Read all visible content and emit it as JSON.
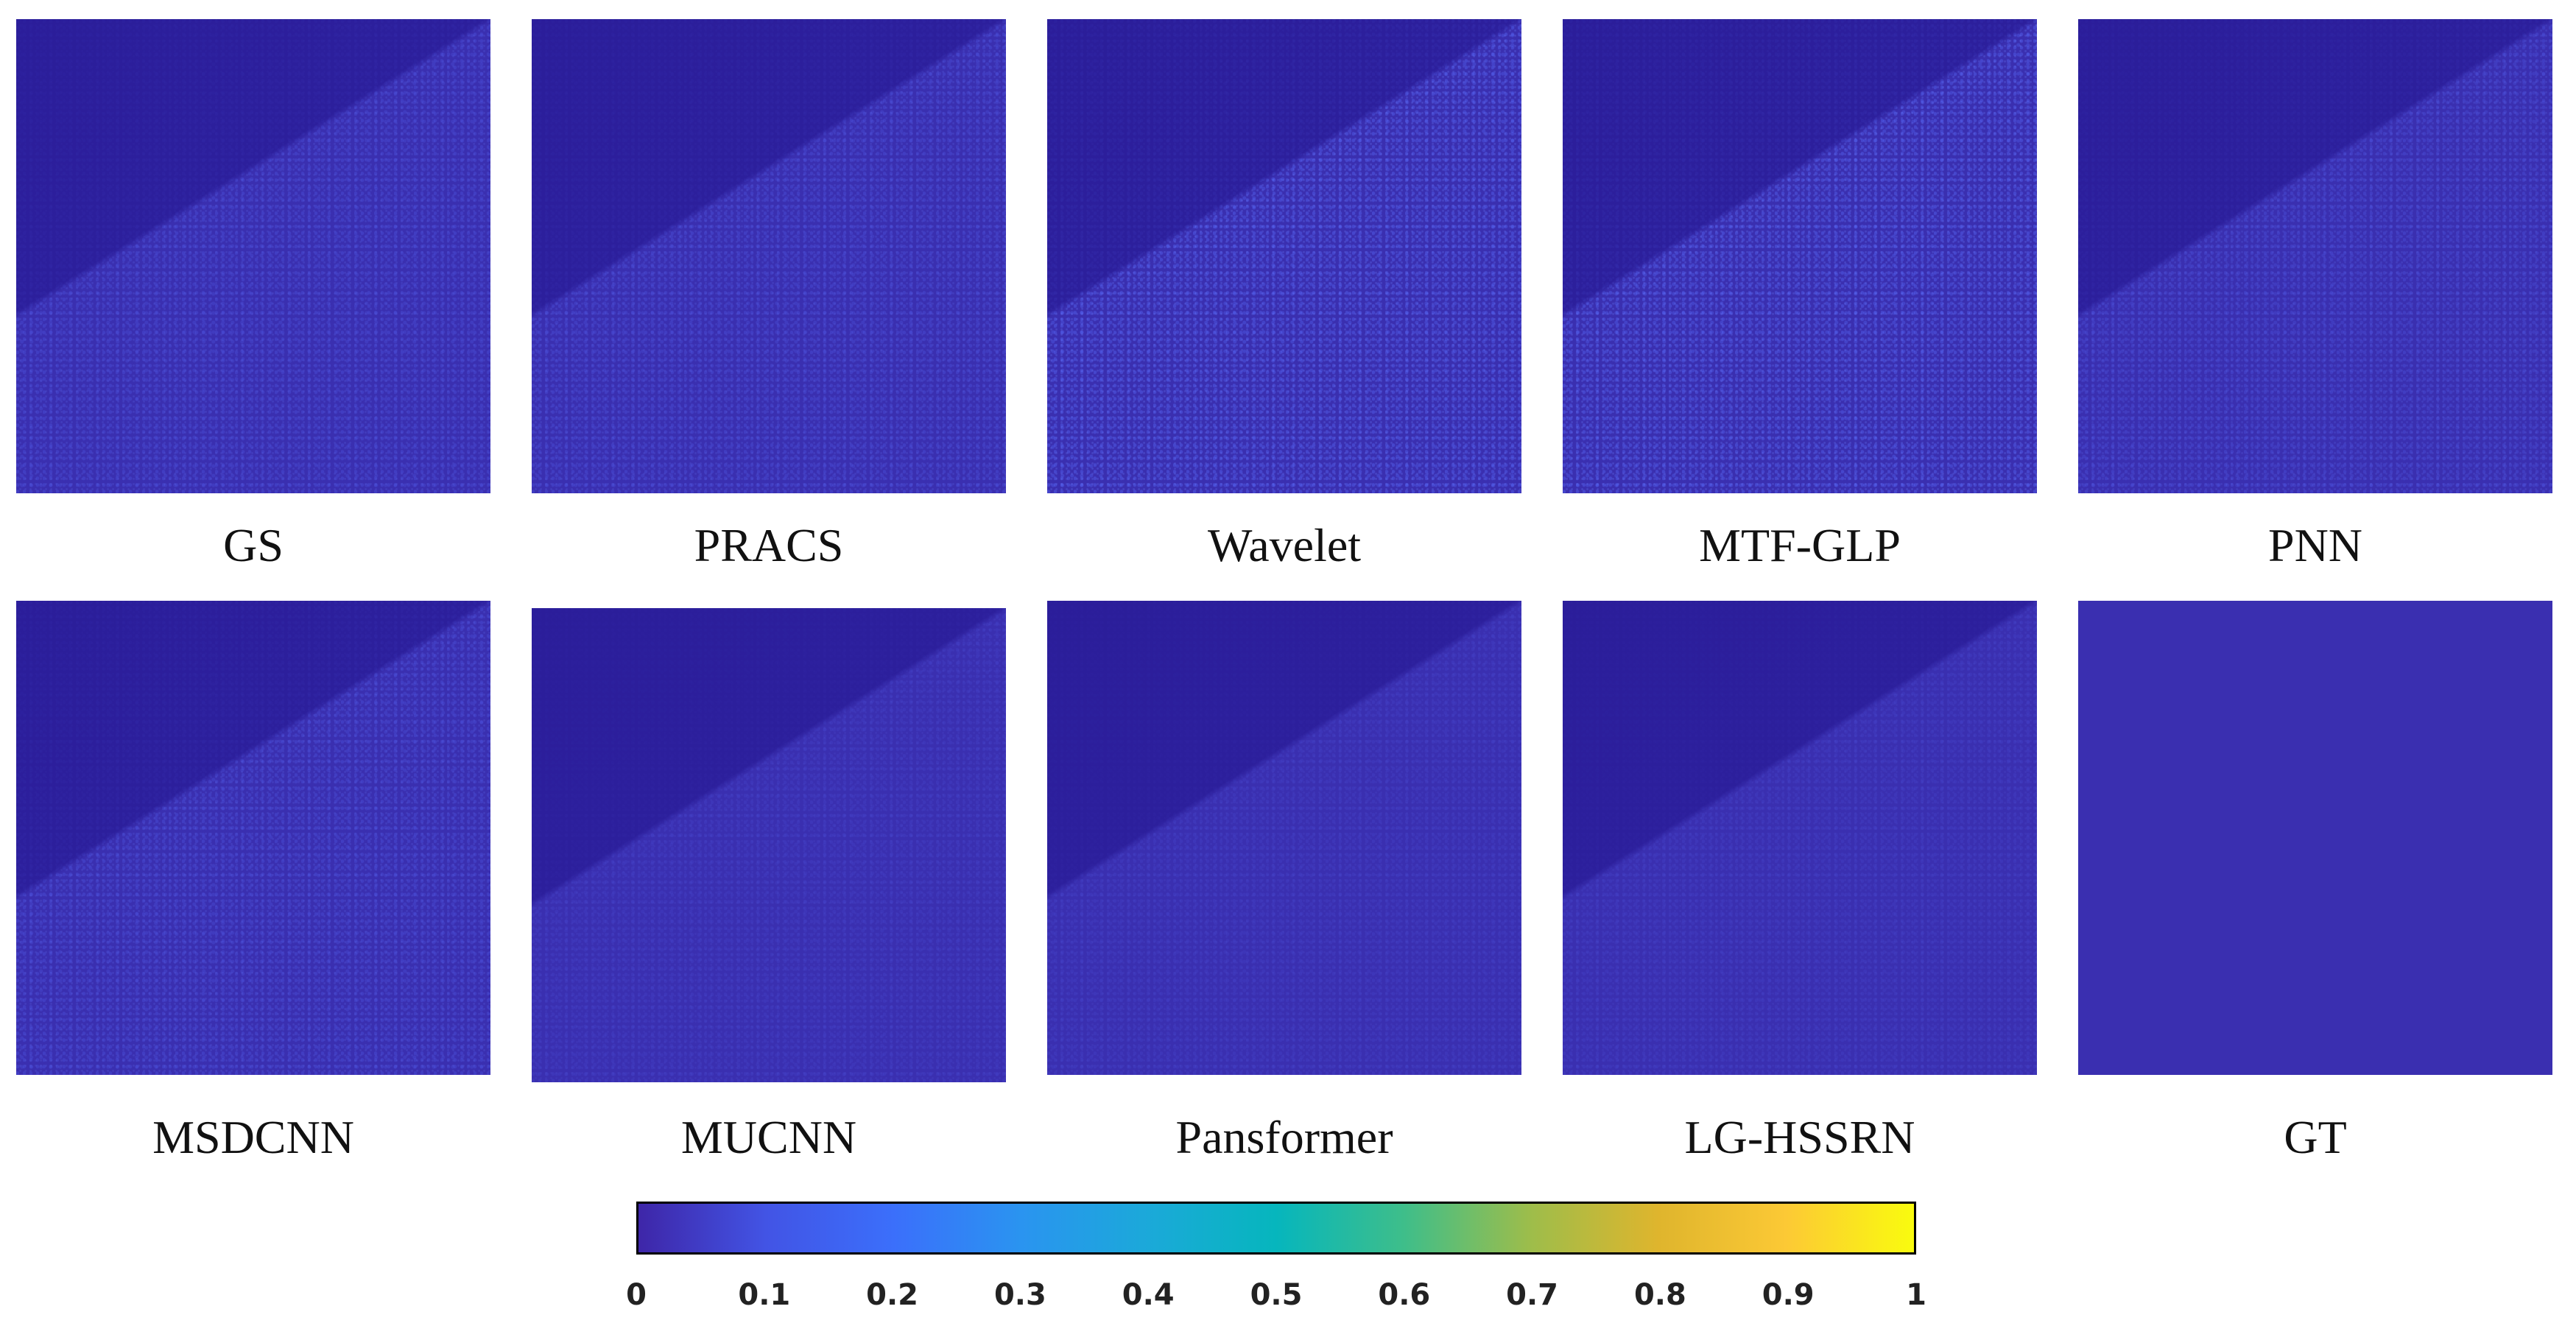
{
  "panels": [
    {
      "label": "GS",
      "error_level": "mid"
    },
    {
      "label": "PRACS",
      "error_level": "mid"
    },
    {
      "label": "Wavelet",
      "error_level": "strong"
    },
    {
      "label": "MTF-GLP",
      "error_level": "strong"
    },
    {
      "label": "PNN",
      "error_level": "mid"
    },
    {
      "label": "MSDCNN",
      "error_level": "mid"
    },
    {
      "label": "MUCNN",
      "error_level": "weak"
    },
    {
      "label": "Pansformer",
      "error_level": "weak"
    },
    {
      "label": "LG-HSSRN",
      "error_level": "weak"
    },
    {
      "label": "GT",
      "error_level": "none"
    }
  ],
  "colorbar": {
    "colormap": "parula",
    "range": [
      0,
      1
    ],
    "ticks": [
      "0",
      "0.1",
      "0.2",
      "0.3",
      "0.4",
      "0.5",
      "0.6",
      "0.7",
      "0.8",
      "0.9",
      "1"
    ]
  }
}
